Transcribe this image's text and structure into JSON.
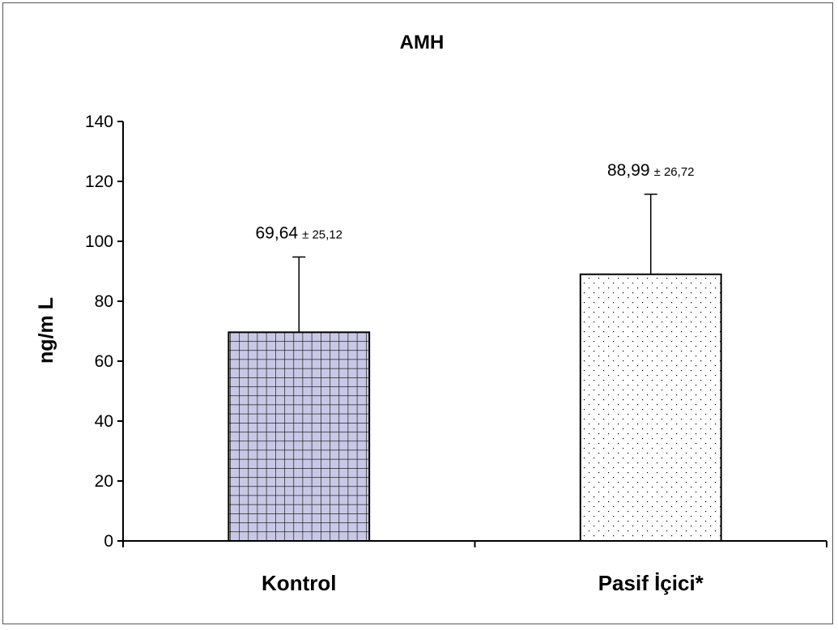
{
  "chart_data": {
    "type": "bar",
    "title": "AMH",
    "ylabel": "ng/m L",
    "xlabel": "",
    "categories": [
      "Kontrol",
      "Pasif İçici*"
    ],
    "values": [
      69.64,
      88.99
    ],
    "errors": [
      25.12,
      26.72
    ],
    "value_labels": [
      "69,64",
      "88,99"
    ],
    "error_labels": [
      "± 25,12",
      "± 26,72"
    ],
    "ylim": [
      0,
      140
    ],
    "yticks": [
      "0",
      "20",
      "40",
      "60",
      "80",
      "100",
      "120",
      "140"
    ],
    "grid": false,
    "legend": "none",
    "bar_styles": [
      {
        "pattern": "grid",
        "fill": "#c8c8e6",
        "line": "#000000"
      },
      {
        "pattern": "dots",
        "fill": "#ffffff",
        "line": "#000000"
      }
    ]
  }
}
